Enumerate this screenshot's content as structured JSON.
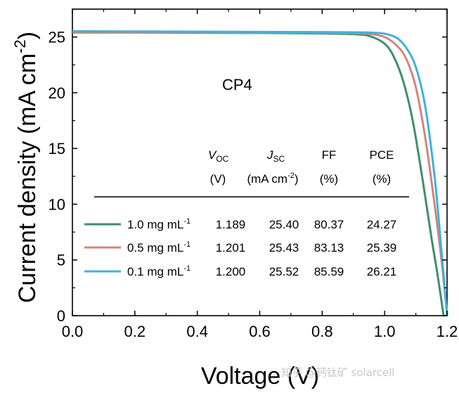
{
  "chart_data": {
    "type": "line",
    "xlabel": "Voltage (V)",
    "ylabel_main": "Current density (mA cm",
    "ylabel_sup": "-2",
    "ylabel_close": ")",
    "xlim": [
      0.0,
      1.2
    ],
    "ylim": [
      0,
      27.5
    ],
    "xticks": [
      "0.0",
      "0.2",
      "0.4",
      "0.6",
      "0.8",
      "1.0",
      "1.2"
    ],
    "yticks": [
      "0",
      "5",
      "10",
      "15",
      "20",
      "25"
    ],
    "annotation": "CP4",
    "series": [
      {
        "name": "1.0 mg mL-1",
        "color": "#3e8f6a",
        "voc": 1.189,
        "jsc": 25.4,
        "ff": 80.37,
        "pce": 24.27,
        "points": [
          [
            0,
            25.4
          ],
          [
            0.2,
            25.4
          ],
          [
            0.4,
            25.38
          ],
          [
            0.6,
            25.36
          ],
          [
            0.8,
            25.32
          ],
          [
            0.9,
            25.25
          ],
          [
            0.95,
            25.1
          ],
          [
            1.0,
            24.4
          ],
          [
            1.03,
            23.2
          ],
          [
            1.06,
            21.0
          ],
          [
            1.09,
            17.5
          ],
          [
            1.12,
            12.5
          ],
          [
            1.15,
            7.0
          ],
          [
            1.17,
            3.6
          ],
          [
            1.189,
            0
          ]
        ]
      },
      {
        "name": "0.5 mg mL-1",
        "color": "#d4857a",
        "voc": 1.201,
        "jsc": 25.43,
        "ff": 83.13,
        "pce": 25.39,
        "points": [
          [
            0,
            25.43
          ],
          [
            0.2,
            25.43
          ],
          [
            0.4,
            25.41
          ],
          [
            0.6,
            25.4
          ],
          [
            0.8,
            25.38
          ],
          [
            0.9,
            25.34
          ],
          [
            0.95,
            25.28
          ],
          [
            1.0,
            25.0
          ],
          [
            1.04,
            24.2
          ],
          [
            1.07,
            23.0
          ],
          [
            1.1,
            20.5
          ],
          [
            1.13,
            16.0
          ],
          [
            1.16,
            10.0
          ],
          [
            1.18,
            5.5
          ],
          [
            1.201,
            0
          ]
        ]
      },
      {
        "name": "0.1 mg mL-1",
        "color": "#3bb3e0",
        "voc": 1.2,
        "jsc": 25.52,
        "ff": 85.59,
        "pce": 26.21,
        "points": [
          [
            0,
            25.52
          ],
          [
            0.2,
            25.5
          ],
          [
            0.4,
            25.48
          ],
          [
            0.6,
            25.46
          ],
          [
            0.8,
            25.44
          ],
          [
            0.9,
            25.42
          ],
          [
            0.95,
            25.4
          ],
          [
            1.0,
            25.3
          ],
          [
            1.04,
            24.9
          ],
          [
            1.07,
            24.0
          ],
          [
            1.1,
            22.3
          ],
          [
            1.13,
            18.8
          ],
          [
            1.16,
            12.5
          ],
          [
            1.18,
            6.5
          ],
          [
            1.2,
            0
          ]
        ]
      }
    ],
    "table": {
      "headers": [
        {
          "main": "V",
          "sub": "OC",
          "unit": "(V)"
        },
        {
          "main": "J",
          "sub": "SC",
          "unit": "(mA cm",
          "unit_sup": "-2",
          "unit_close": ")"
        },
        {
          "main": "FF",
          "unit": "(%)"
        },
        {
          "main": "PCE",
          "unit": "(%)"
        }
      ],
      "rows": [
        {
          "label": "1.0 mg mL",
          "label_sup": "-1",
          "values": [
            "1.189",
            "25.40",
            "80.37",
            "24.27"
          ]
        },
        {
          "label": "0.5 mg mL",
          "label_sup": "-1",
          "values": [
            "1.201",
            "25.43",
            "83.13",
            "25.39"
          ]
        },
        {
          "label": "0.1 mg mL",
          "label_sup": "-1",
          "values": [
            "1.200",
            "25.52",
            "85.59",
            "26.21"
          ]
        }
      ]
    }
  },
  "watermark": "知乎 @钙钛矿 solarcell"
}
